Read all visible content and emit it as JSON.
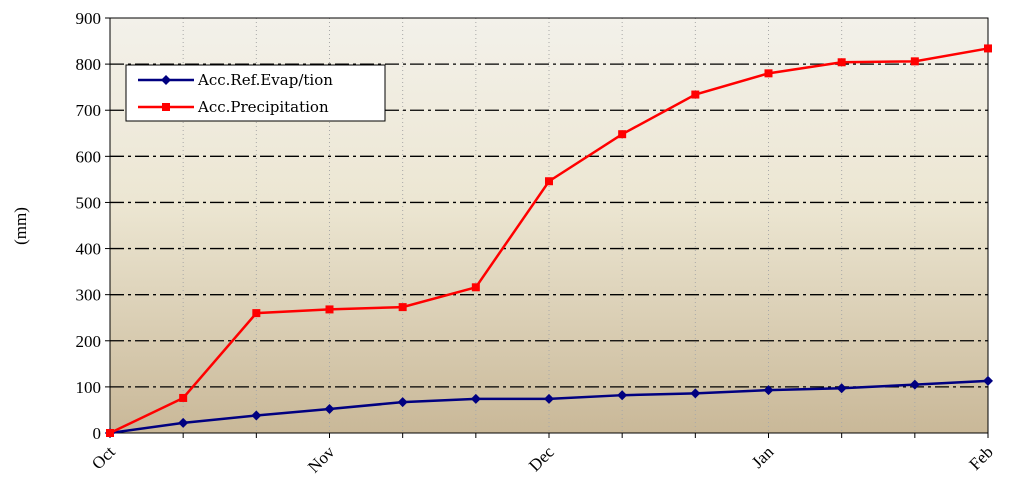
{
  "chart_data": {
    "type": "line",
    "title": "",
    "xlabel": "",
    "ylabel": "(mm)",
    "ylim": [
      0,
      900
    ],
    "yticks": [
      0,
      100,
      200,
      300,
      400,
      500,
      600,
      700,
      800,
      900
    ],
    "x_ticks": [
      "Oct",
      "Nov",
      "Dec",
      "Jan",
      "Feb"
    ],
    "legend": "top-left",
    "grid": {
      "horizontal": "dash-dot",
      "vertical": "dotted"
    },
    "series": [
      {
        "name": "Acc.Ref.Evap/tion",
        "color": "#000080",
        "marker": "diamond",
        "x": [
          "Oct",
          "",
          "",
          "Nov",
          "",
          "",
          "Dec",
          "",
          "",
          "Jan",
          "",
          "",
          "Feb"
        ],
        "values": [
          0,
          22,
          38,
          52,
          67,
          74,
          74,
          82,
          86,
          93,
          97,
          105,
          113
        ]
      },
      {
        "name": "Acc.Precipitation",
        "color": "#ff0000",
        "marker": "square",
        "x": [
          "Oct",
          "",
          "",
          "Nov",
          "",
          "",
          "Dec",
          "",
          "",
          "Jan",
          "",
          "",
          "Feb"
        ],
        "values": [
          0,
          76,
          260,
          268,
          273,
          316,
          546,
          648,
          734,
          780,
          804,
          806,
          834
        ]
      }
    ]
  }
}
